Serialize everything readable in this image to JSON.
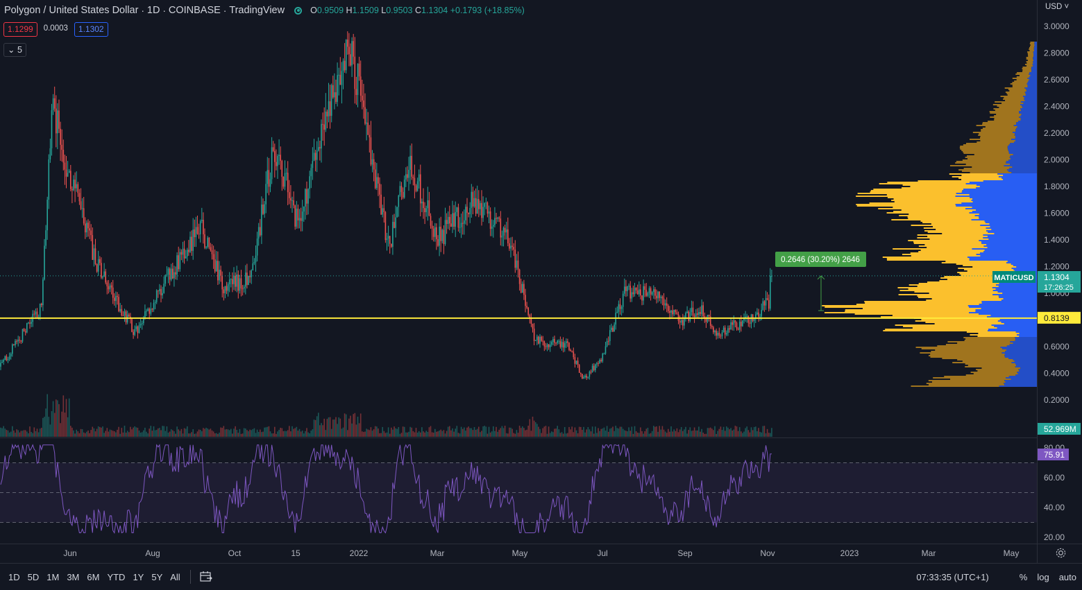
{
  "symbol": {
    "title": "Polygon / United States Dollar",
    "interval": "1D",
    "exchange": "COINBASE",
    "source": "TradingView",
    "ohlc": {
      "o_label": "O",
      "o": "0.9509",
      "h_label": "H",
      "h": "1.1509",
      "l_label": "L",
      "l": "0.9503",
      "c_label": "C",
      "c": "1.1304",
      "change": "+0.1793 (+18.85%)"
    }
  },
  "trade": {
    "sell": "1.1299",
    "spread": "0.0003",
    "buy": "1.1302"
  },
  "indicator_collapse": {
    "label": "5",
    "icon": "chevron-down-icon"
  },
  "currency_selector": "USD",
  "price_axis": [
    "3.0000",
    "2.8000",
    "2.6000",
    "2.4000",
    "2.2000",
    "2.0000",
    "1.8000",
    "1.6000",
    "1.4000",
    "1.2000",
    "1.0000",
    "0.8000",
    "0.6000",
    "0.4000",
    "0.2000"
  ],
  "rsi_axis": [
    "80.00",
    "60.00",
    "40.00",
    "20.00"
  ],
  "time_axis": [
    "Jun",
    "Aug",
    "Oct",
    "15",
    "2022",
    "Mar",
    "May",
    "Jul",
    "Sep",
    "Nov",
    "2023",
    "Mar",
    "May"
  ],
  "labels": {
    "symbol_tag": "MATICUSD",
    "last_price": "1.1304",
    "countdown": "17:26:25",
    "horizontal_line": "0.8139",
    "volume": "52.969M",
    "rsi_value": "75.91",
    "measure": "0.2646 (30.20%) 2646"
  },
  "colors": {
    "up": "#26a69a",
    "down": "#ef5350",
    "hline": "#ffeb3b",
    "rsi": "#7e57c2",
    "vp_up": "#2962ff",
    "vp_down": "#fbc02d",
    "measure": "#43a047"
  },
  "bottom": {
    "ranges": [
      "1D",
      "5D",
      "1M",
      "3M",
      "6M",
      "YTD",
      "1Y",
      "5Y",
      "All"
    ],
    "clock": "07:33:35 (UTC+1)",
    "options": [
      "%",
      "log",
      "auto"
    ]
  },
  "chart_data": {
    "type": "candlestick",
    "interval": "1D",
    "y_range": [
      0.2,
      3.0
    ],
    "key_points": [
      {
        "x": "May",
        "y": 0.45
      },
      {
        "x": "late May",
        "y": 2.4
      },
      {
        "x": "Jun",
        "y": 1.6
      },
      {
        "x": "Aug",
        "y": 0.75
      },
      {
        "x": "Oct",
        "y": 1.1
      },
      {
        "x": "2022",
        "y": 2.8
      },
      {
        "x": "Mar",
        "y": 1.4
      },
      {
        "x": "May",
        "y": 0.6
      },
      {
        "x": "Jun",
        "y": 0.35
      },
      {
        "x": "Jul",
        "y": 0.85
      },
      {
        "x": "Sep",
        "y": 0.8
      },
      {
        "x": "Nov",
        "y": 1.13
      }
    ],
    "horizontal_line": 0.8139,
    "last_close": 1.1304,
    "rsi": {
      "levels": [
        70,
        50,
        30
      ],
      "last": 75.91,
      "range": [
        20,
        80
      ]
    }
  }
}
